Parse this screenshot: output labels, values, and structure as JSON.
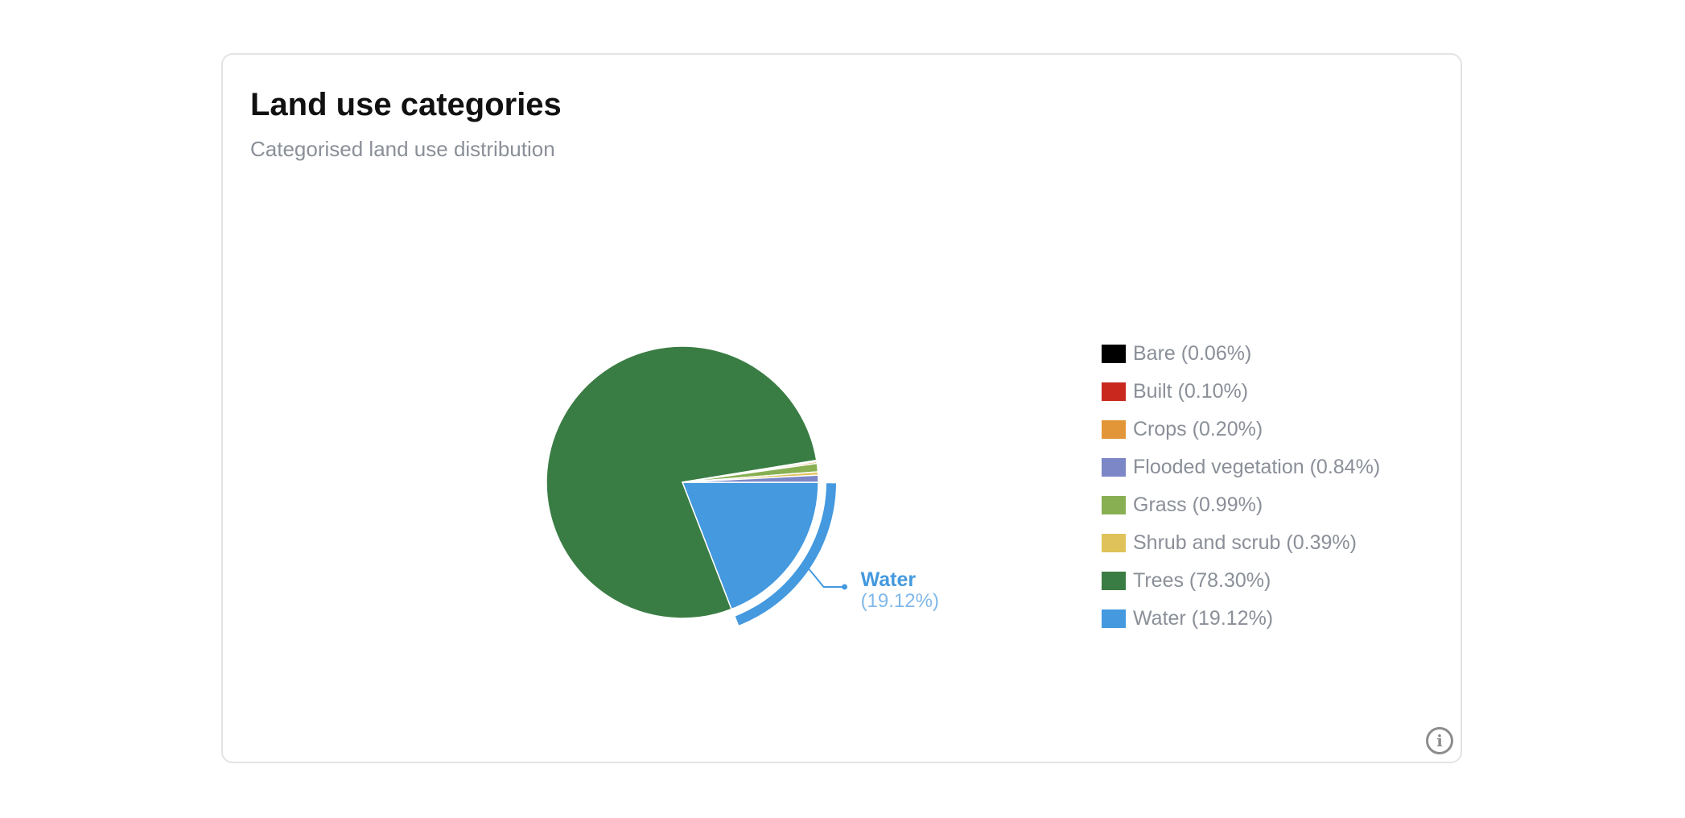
{
  "card": {
    "title": "Land use categories",
    "subtitle": "Categorised land use distribution",
    "info_icon": "info-icon"
  },
  "chart_data": {
    "type": "pie",
    "title": "Land use categories",
    "subtitle": "Categorised land use distribution",
    "legend_position": "right",
    "slices": [
      {
        "label": "Bare",
        "value": 0.06,
        "display": "Bare (0.06%)",
        "color": "#000000"
      },
      {
        "label": "Built",
        "value": 0.1,
        "display": "Built (0.10%)",
        "color": "#c9281f"
      },
      {
        "label": "Crops",
        "value": 0.2,
        "display": "Crops (0.20%)",
        "color": "#e39637"
      },
      {
        "label": "Flooded vegetation",
        "value": 0.84,
        "display": "Flooded vegetation (0.84%)",
        "color": "#7b87c6"
      },
      {
        "label": "Grass",
        "value": 0.99,
        "display": "Grass (0.99%)",
        "color": "#88b053"
      },
      {
        "label": "Shrub and scrub",
        "value": 0.39,
        "display": "Shrub and scrub (0.39%)",
        "color": "#dfc35a"
      },
      {
        "label": "Trees",
        "value": 78.3,
        "display": "Trees (78.30%)",
        "color": "#3a7d44"
      },
      {
        "label": "Water",
        "value": 19.12,
        "display": "Water (19.12%)",
        "color": "#4499df"
      }
    ],
    "highlighted": {
      "label": "Water",
      "value_text": "(19.12%)",
      "color": "#4499df"
    }
  }
}
